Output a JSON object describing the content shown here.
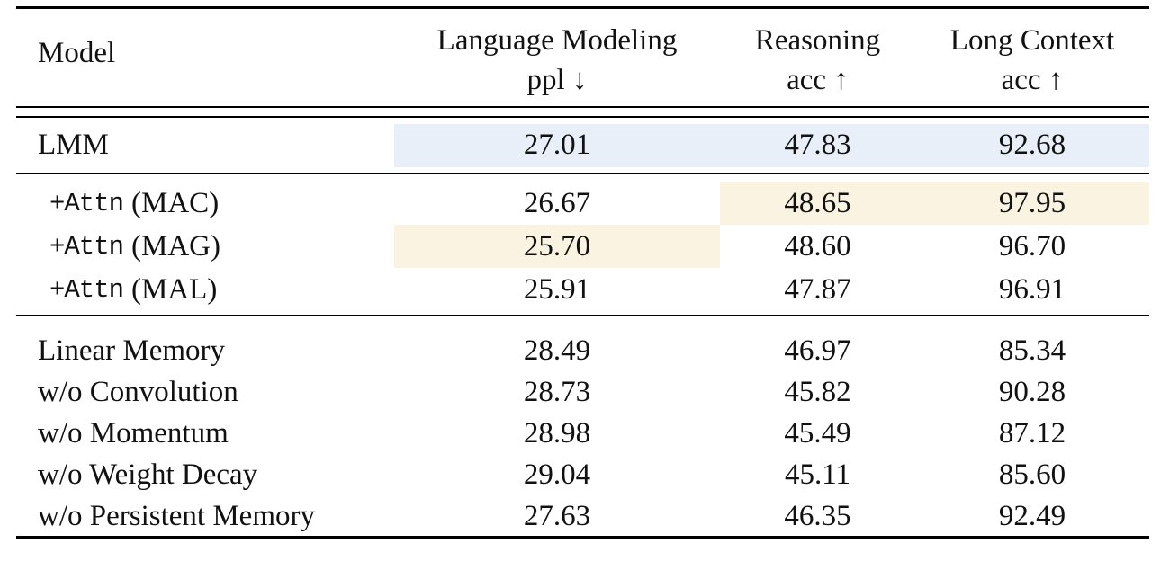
{
  "colors": {
    "baseline_highlight": "#E8EFF9",
    "best_highlight": "#FAF3E1",
    "rule": "#000000",
    "text": "#111111"
  },
  "header": {
    "model": "Model",
    "language_modeling_line1": "Language Modeling",
    "language_modeling_line2": "ppl ↓",
    "reasoning_line1": "Reasoning",
    "reasoning_line2": "acc ↑",
    "long_context_line1": "Long Context",
    "long_context_line2": "acc ↑"
  },
  "rows": [
    {
      "label": "LMM",
      "ppl": "27.01",
      "reasoning": "47.83",
      "long_context": "92.68"
    },
    {
      "label_mono": "+Attn",
      "label_rest": "(MAC)",
      "ppl": "26.67",
      "reasoning": "48.65",
      "long_context": "97.95"
    },
    {
      "label_mono": "+Attn",
      "label_rest": "(MAG)",
      "ppl": "25.70",
      "reasoning": "48.60",
      "long_context": "96.70"
    },
    {
      "label_mono": "+Attn",
      "label_rest": "(MAL)",
      "ppl": "25.91",
      "reasoning": "47.87",
      "long_context": "96.91"
    },
    {
      "label": "Linear Memory",
      "ppl": "28.49",
      "reasoning": "46.97",
      "long_context": "85.34"
    },
    {
      "label": "w/o Convolution",
      "ppl": "28.73",
      "reasoning": "45.82",
      "long_context": "90.28"
    },
    {
      "label": "w/o Momentum",
      "ppl": "28.98",
      "reasoning": "45.49",
      "long_context": "87.12"
    },
    {
      "label": "w/o Weight Decay",
      "ppl": "29.04",
      "reasoning": "45.11",
      "long_context": "85.60"
    },
    {
      "label": "w/o Persistent Memory",
      "ppl": "27.63",
      "reasoning": "46.35",
      "long_context": "92.49"
    }
  ],
  "chart_data": {
    "type": "table",
    "title": "Ablation study table",
    "columns": [
      "Model",
      "Language Modeling ppl ↓",
      "Reasoning acc ↑",
      "Long Context acc ↑"
    ],
    "rows": [
      [
        "LMM",
        27.01,
        47.83,
        92.68
      ],
      [
        "+Attn (MAC)",
        26.67,
        48.65,
        97.95
      ],
      [
        "+Attn (MAG)",
        25.7,
        48.6,
        96.7
      ],
      [
        "+Attn (MAL)",
        25.91,
        47.87,
        96.91
      ],
      [
        "Linear Memory",
        28.49,
        46.97,
        85.34
      ],
      [
        "w/o Convolution",
        28.73,
        45.82,
        90.28
      ],
      [
        "w/o Momentum",
        28.98,
        45.49,
        87.12
      ],
      [
        "w/o Weight Decay",
        29.04,
        45.11,
        85.6
      ],
      [
        "w/o Persistent Memory",
        27.63,
        46.35,
        92.49
      ]
    ],
    "highlights": {
      "baseline_row_blue": "LMM (all three metric cells)",
      "best_cells_cream": [
        "+Attn (MAC): Reasoning 48.65 and Long Context 97.95",
        "+Attn (MAG): ppl 25.70"
      ]
    }
  }
}
